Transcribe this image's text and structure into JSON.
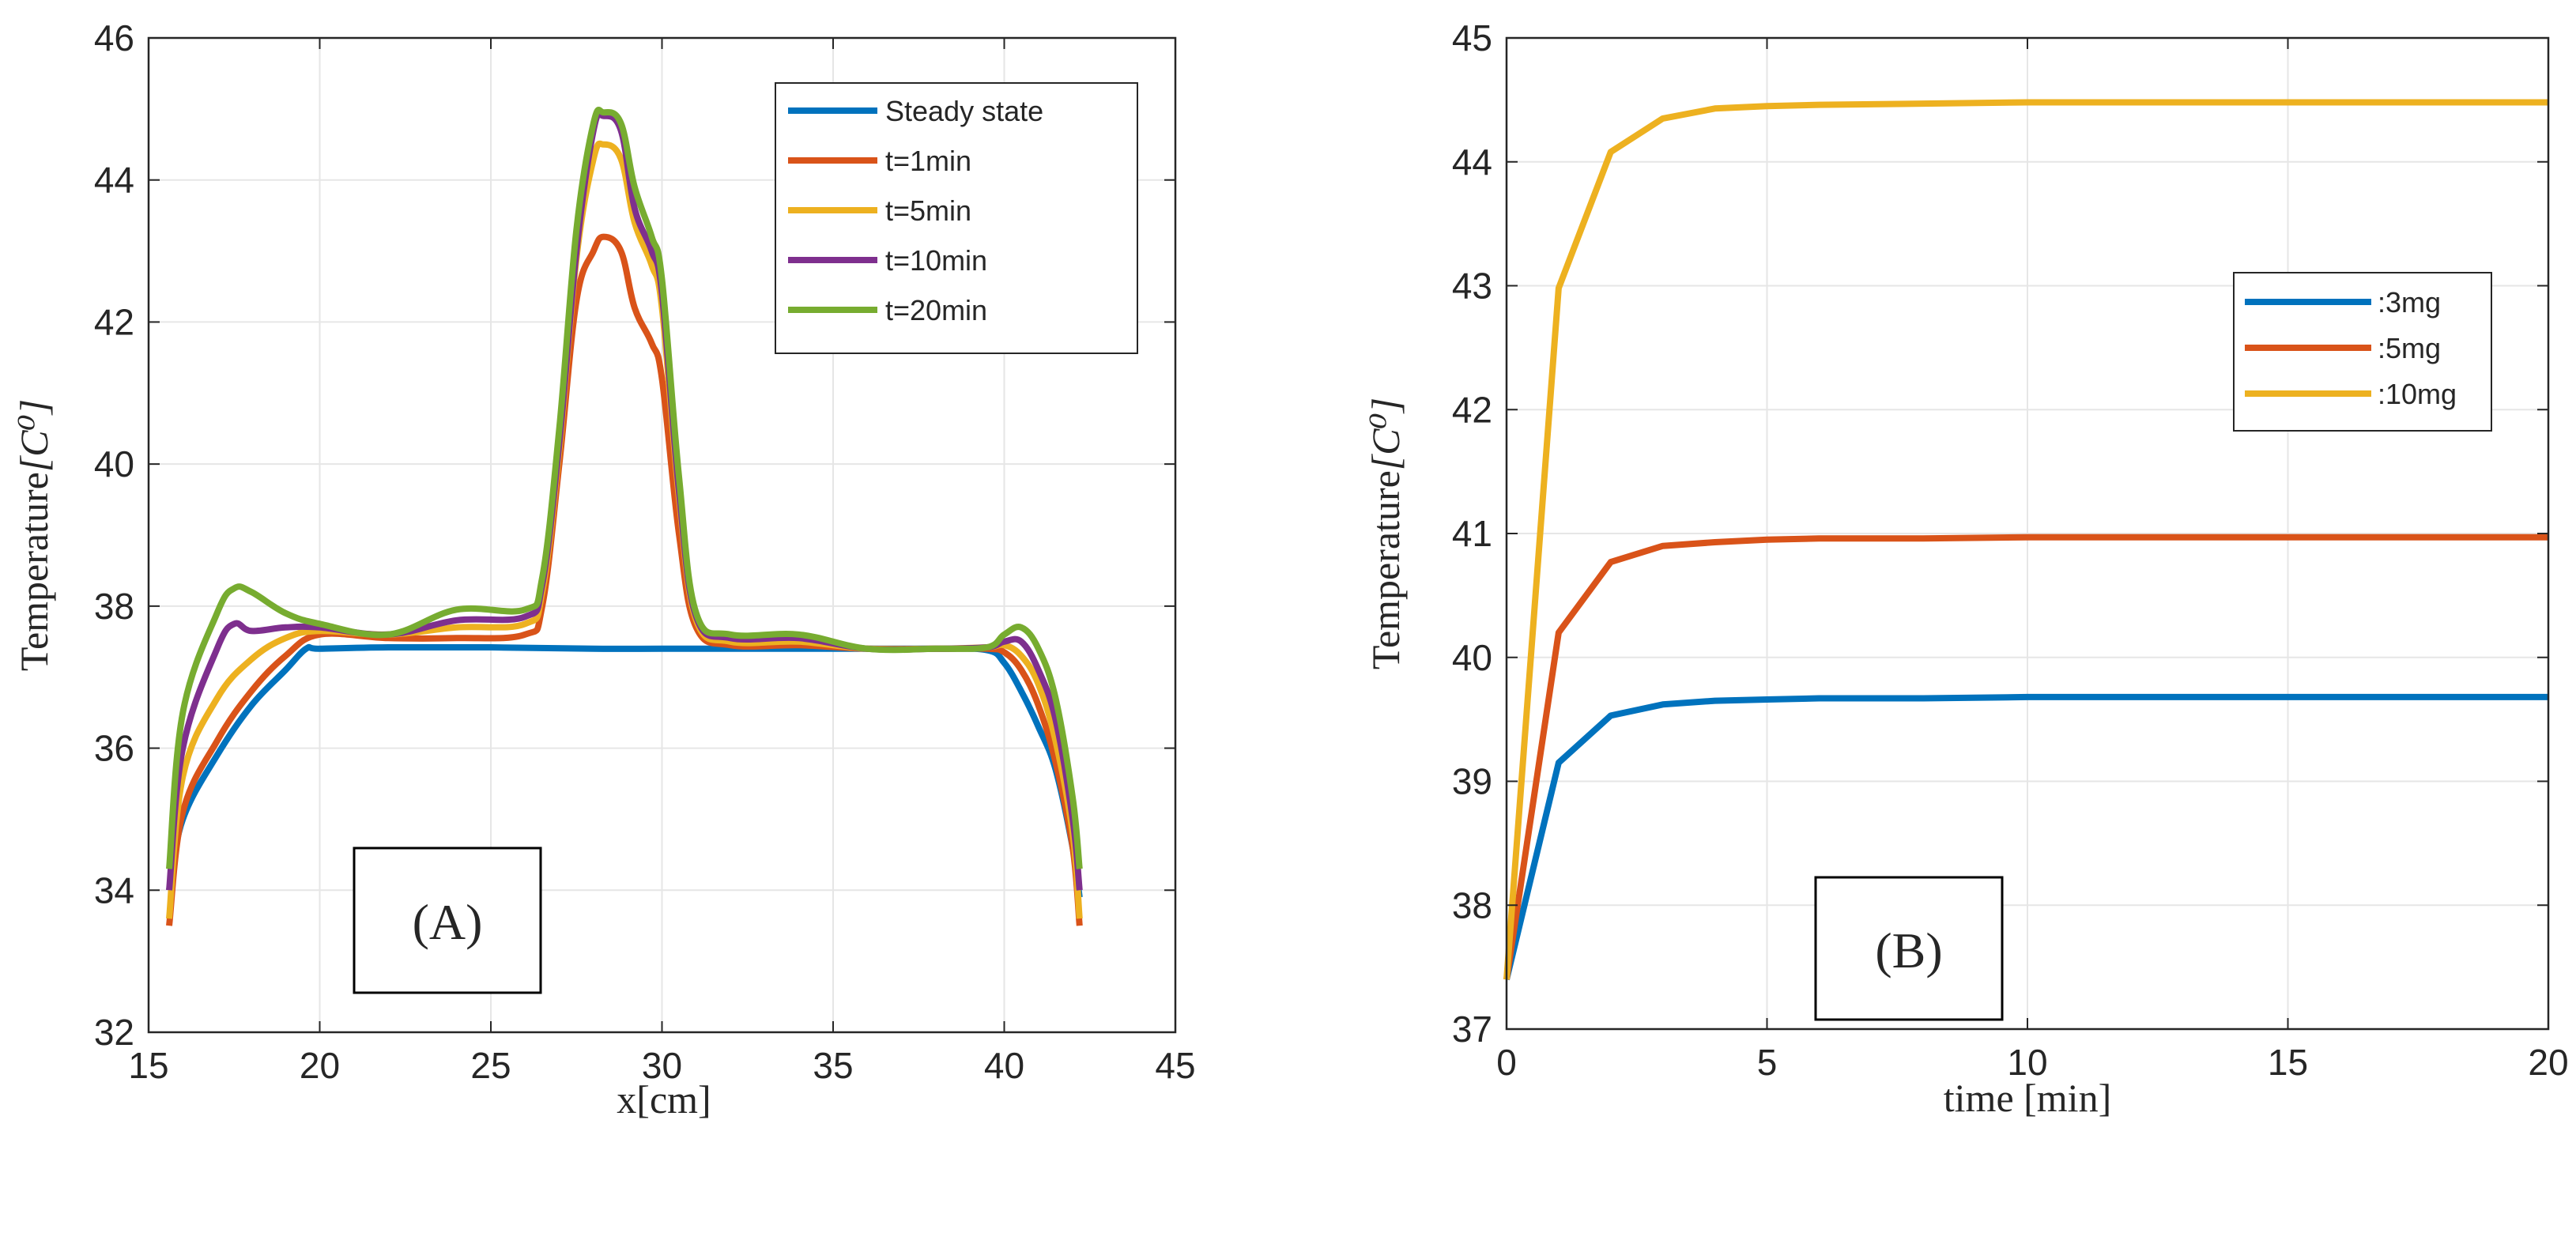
{
  "chart_data": [
    {
      "type": "line",
      "panel": "A",
      "title": "",
      "xlabel": "x[cm]",
      "ylabel": "Temperature",
      "ylabel_unit": "[C⁰]",
      "xlim": [
        15,
        45
      ],
      "ylim": [
        32,
        46
      ],
      "xticks": [
        15,
        20,
        25,
        30,
        35,
        40,
        45
      ],
      "yticks": [
        32,
        34,
        36,
        38,
        40,
        42,
        44,
        46
      ],
      "grid": true,
      "legend_position": "top-right",
      "annotation": "(A)",
      "series": [
        {
          "name": "Steady state",
          "color": "#0072BD",
          "x": [
            15.6,
            16,
            17,
            18,
            19,
            19.6,
            20,
            22,
            25,
            28,
            30,
            32,
            35,
            38,
            39.5,
            40,
            40.5,
            41,
            41.5,
            42,
            42.2
          ],
          "y": [
            34.0,
            35.0,
            35.9,
            36.6,
            37.1,
            37.4,
            37.4,
            37.42,
            37.42,
            37.4,
            37.4,
            37.4,
            37.4,
            37.4,
            37.38,
            37.2,
            36.8,
            36.3,
            35.7,
            34.6,
            33.9
          ]
        },
        {
          "name": "t=1min",
          "color": "#D95319",
          "x": [
            15.6,
            16,
            17,
            18,
            19,
            20,
            22,
            24,
            26,
            26.5,
            27,
            27.5,
            28,
            28.3,
            28.8,
            29.2,
            29.7,
            30,
            30.5,
            31,
            32,
            34,
            36,
            38,
            39.5,
            40,
            40.5,
            41,
            41.5,
            42,
            42.2
          ],
          "y": [
            33.5,
            35.1,
            36.1,
            36.8,
            37.3,
            37.6,
            37.55,
            37.55,
            37.6,
            38.0,
            40.0,
            42.3,
            43.0,
            43.2,
            43.0,
            42.2,
            41.7,
            41.2,
            39.0,
            37.7,
            37.45,
            37.45,
            37.4,
            37.4,
            37.4,
            37.35,
            37.1,
            36.6,
            35.8,
            34.6,
            33.5
          ]
        },
        {
          "name": "t=5min",
          "color": "#EDB120",
          "x": [
            15.6,
            16,
            17,
            18,
            19,
            20,
            22,
            24,
            26,
            26.5,
            27,
            27.5,
            28,
            28.3,
            28.8,
            29.2,
            29.7,
            30,
            30.5,
            31,
            32,
            34,
            36,
            38,
            39.5,
            40,
            40.5,
            41,
            41.5,
            42,
            42.2
          ],
          "y": [
            33.6,
            35.6,
            36.7,
            37.25,
            37.55,
            37.65,
            37.6,
            37.7,
            37.75,
            38.2,
            40.2,
            42.9,
            44.3,
            44.5,
            44.3,
            43.4,
            42.8,
            42.2,
            39.5,
            37.8,
            37.5,
            37.5,
            37.4,
            37.4,
            37.42,
            37.45,
            37.3,
            36.9,
            36.1,
            34.8,
            33.6
          ]
        },
        {
          "name": "t=10min",
          "color": "#7E2F8E",
          "x": [
            15.6,
            16,
            17,
            17.5,
            18,
            19,
            20,
            22,
            24,
            26,
            26.5,
            27,
            27.5,
            28,
            28.3,
            28.8,
            29.2,
            29.7,
            30,
            30.5,
            31,
            32,
            34,
            36,
            38,
            39.5,
            40,
            40.5,
            41,
            41.5,
            42,
            42.2
          ],
          "y": [
            34.0,
            36.0,
            37.4,
            37.75,
            37.65,
            37.7,
            37.7,
            37.6,
            37.8,
            37.85,
            38.3,
            40.3,
            43.0,
            44.7,
            44.9,
            44.7,
            43.6,
            43.0,
            42.4,
            39.6,
            37.85,
            37.55,
            37.55,
            37.4,
            37.4,
            37.42,
            37.5,
            37.5,
            37.1,
            36.4,
            35.0,
            34.0
          ]
        },
        {
          "name": "t=20min",
          "color": "#77AC30",
          "x": [
            15.6,
            16,
            17,
            17.5,
            18,
            19,
            20,
            22,
            24,
            26,
            26.5,
            27,
            27.5,
            28,
            28.3,
            28.8,
            29.2,
            29.7,
            30,
            30.5,
            31,
            32,
            34,
            36,
            38,
            39.5,
            40,
            40.5,
            41,
            41.5,
            42,
            42.2
          ],
          "y": [
            34.3,
            36.5,
            37.9,
            38.25,
            38.2,
            37.9,
            37.75,
            37.6,
            37.95,
            37.95,
            38.4,
            40.5,
            43.3,
            44.8,
            44.95,
            44.8,
            43.9,
            43.2,
            42.6,
            39.8,
            37.9,
            37.6,
            37.6,
            37.4,
            37.4,
            37.42,
            37.6,
            37.7,
            37.4,
            36.7,
            35.3,
            34.3
          ]
        }
      ]
    },
    {
      "type": "line",
      "panel": "B",
      "title": "",
      "xlabel": "time [min]",
      "ylabel": "Temperature",
      "ylabel_unit": "[C⁰]",
      "xlim": [
        0,
        20
      ],
      "ylim": [
        37,
        45
      ],
      "xticks": [
        0,
        5,
        10,
        15,
        20
      ],
      "yticks": [
        37,
        38,
        39,
        40,
        41,
        42,
        43,
        44,
        45
      ],
      "grid": true,
      "legend_position": "right",
      "annotation": "(B)",
      "series": [
        {
          "name": ":3mg",
          "color": "#0072BD",
          "x": [
            0,
            1,
            2,
            3,
            4,
            5,
            6,
            8,
            10,
            15,
            20
          ],
          "y": [
            37.4,
            39.15,
            39.53,
            39.62,
            39.65,
            39.66,
            39.67,
            39.67,
            39.68,
            39.68,
            39.68
          ]
        },
        {
          "name": ":5mg",
          "color": "#D95319",
          "x": [
            0,
            1,
            2,
            3,
            4,
            5,
            6,
            8,
            10,
            15,
            20
          ],
          "y": [
            37.4,
            40.2,
            40.77,
            40.9,
            40.93,
            40.95,
            40.96,
            40.96,
            40.97,
            40.97,
            40.97
          ]
        },
        {
          "name": ":10mg",
          "color": "#EDB120",
          "x": [
            0,
            1,
            2,
            3,
            4,
            5,
            6,
            8,
            10,
            15,
            20
          ],
          "y": [
            37.4,
            42.98,
            44.08,
            44.35,
            44.43,
            44.45,
            44.46,
            44.47,
            44.48,
            44.48,
            44.48
          ]
        }
      ]
    }
  ]
}
